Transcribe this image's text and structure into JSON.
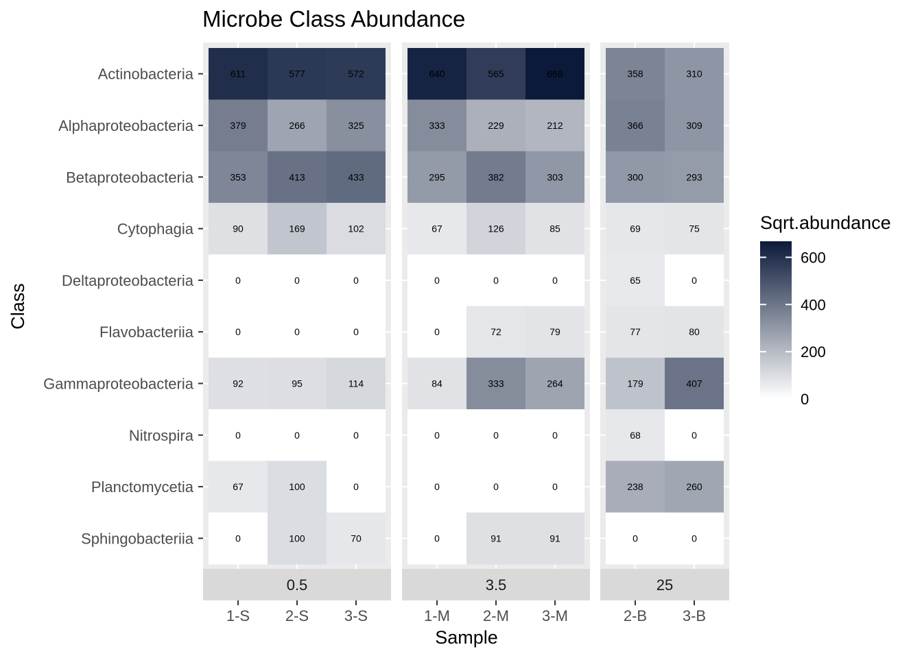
{
  "chart_data": {
    "type": "heatmap",
    "title": "Microbe Class Abundance",
    "xlabel": "Sample",
    "ylabel": "Class",
    "classes": [
      "Actinobacteria",
      "Alphaproteobacteria",
      "Betaproteobacteria",
      "Cytophagia",
      "Deltaproteobacteria",
      "Flavobacteriia",
      "Gammaproteobacteria",
      "Nitrospira",
      "Planctomycetia",
      "Sphingobacteriia"
    ],
    "facets": [
      {
        "label": "0.5",
        "samples": [
          "1-S",
          "2-S",
          "3-S"
        ],
        "values": [
          [
            611,
            577,
            572
          ],
          [
            379,
            266,
            325
          ],
          [
            353,
            413,
            433
          ],
          [
            90,
            169,
            102
          ],
          [
            0,
            0,
            0
          ],
          [
            0,
            0,
            0
          ],
          [
            92,
            95,
            114
          ],
          [
            0,
            0,
            0
          ],
          [
            67,
            100,
            0
          ],
          [
            0,
            100,
            70
          ]
        ]
      },
      {
        "label": "3.5",
        "samples": [
          "1-M",
          "2-M",
          "3-M"
        ],
        "values": [
          [
            640,
            565,
            668
          ],
          [
            333,
            229,
            212
          ],
          [
            295,
            382,
            303
          ],
          [
            67,
            126,
            85
          ],
          [
            0,
            0,
            0
          ],
          [
            0,
            72,
            79
          ],
          [
            84,
            333,
            264
          ],
          [
            0,
            0,
            0
          ],
          [
            0,
            0,
            0
          ],
          [
            0,
            91,
            91
          ]
        ]
      },
      {
        "label": "25",
        "samples": [
          "2-B",
          "3-B"
        ],
        "values": [
          [
            358,
            310
          ],
          [
            366,
            309
          ],
          [
            300,
            293
          ],
          [
            69,
            75
          ],
          [
            65,
            0
          ],
          [
            77,
            80
          ],
          [
            179,
            407
          ],
          [
            68,
            0
          ],
          [
            238,
            260
          ],
          [
            0,
            0
          ]
        ]
      }
    ],
    "legend": {
      "title": "Sqrt.abundance",
      "ticks": [
        0,
        200,
        400,
        600
      ],
      "range": [
        0,
        668
      ],
      "low_color": "#ffffff",
      "high_color": "#0b1a3a",
      "placement": "right"
    },
    "grid": true,
    "panel_background": "#ebebeb",
    "strip_background": "#d9d9d9"
  }
}
